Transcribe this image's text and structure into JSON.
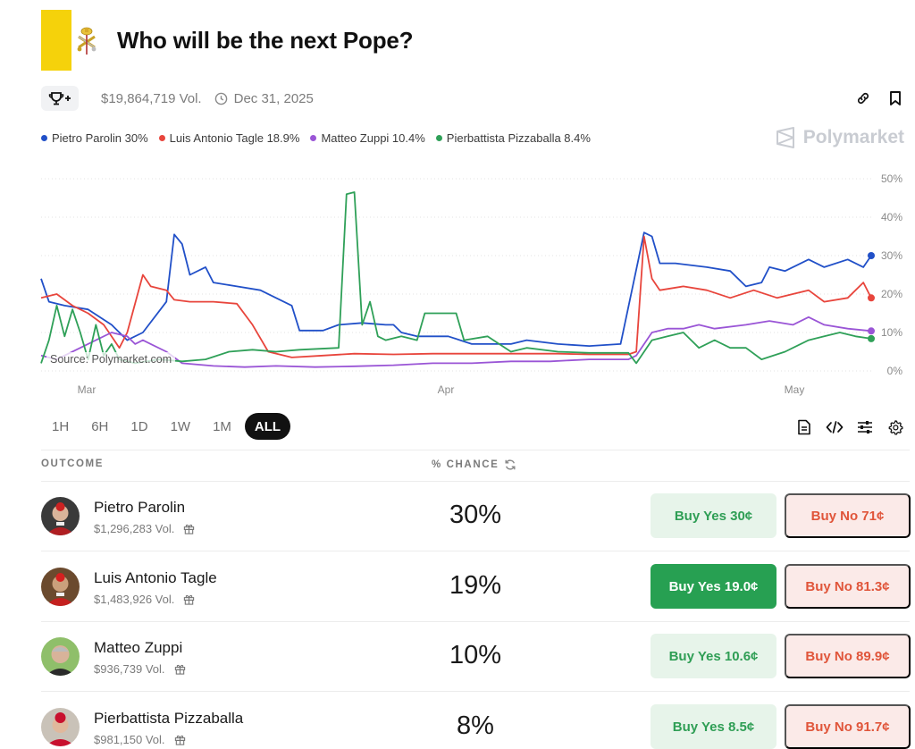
{
  "market": {
    "title": "Who will be the next Pope?",
    "volume": "$19,864,719 Vol.",
    "end_date": "Dec 31, 2025",
    "accent": "#f5d20b",
    "image_icon": "papal-emblem-icon",
    "trophy_icon": "trophy-plus-icon"
  },
  "brand": {
    "name": "Polymarket",
    "icon": "polymarket-logo-icon"
  },
  "top_actions": {
    "link_icon": "link-icon",
    "bookmark_icon": "bookmark-icon"
  },
  "legend": [
    {
      "label": "Pietro Parolin 30%",
      "color": "#2150c8"
    },
    {
      "label": "Luis Antonio Tagle 18.9%",
      "color": "#e8453c"
    },
    {
      "label": "Matteo Zuppi 10.4%",
      "color": "#9a55d6"
    },
    {
      "label": "Pierbattista Pizzaballa 8.4%",
      "color": "#2fa058"
    }
  ],
  "chart_data": {
    "type": "line",
    "source": "Source: Polymarket.com",
    "x_ticks": [
      "Mar",
      "Apr",
      "May"
    ],
    "y_ticks": [
      "50%",
      "40%",
      "30%",
      "20%",
      "10%",
      "0%"
    ],
    "ylim": [
      0,
      50
    ],
    "grid": true,
    "x_range_days": [
      0,
      75
    ],
    "series": [
      {
        "name": "Pietro Parolin",
        "color": "#2150c8",
        "points": [
          [
            0,
            24
          ],
          [
            1,
            18
          ],
          [
            3,
            17
          ],
          [
            6,
            16
          ],
          [
            9,
            12
          ],
          [
            11,
            8
          ],
          [
            13,
            10
          ],
          [
            16,
            18
          ],
          [
            17,
            35.5
          ],
          [
            18,
            33
          ],
          [
            19,
            25
          ],
          [
            21,
            27
          ],
          [
            22,
            23
          ],
          [
            25,
            22
          ],
          [
            28,
            21
          ],
          [
            30,
            19
          ],
          [
            32,
            17
          ],
          [
            33,
            10.5
          ],
          [
            36,
            10.5
          ],
          [
            38,
            12
          ],
          [
            41,
            12.5
          ],
          [
            44,
            12
          ],
          [
            45,
            12
          ],
          [
            46,
            10
          ],
          [
            48,
            9
          ],
          [
            52,
            9
          ],
          [
            55,
            7
          ],
          [
            60,
            7
          ],
          [
            62,
            8
          ],
          [
            66,
            7
          ],
          [
            70,
            6.5
          ],
          [
            74,
            7
          ],
          [
            77,
            36
          ],
          [
            78,
            35
          ],
          [
            79,
            28
          ],
          [
            81,
            28
          ],
          [
            85,
            27
          ],
          [
            88,
            26
          ],
          [
            90,
            22
          ],
          [
            92,
            23
          ],
          [
            93,
            27
          ],
          [
            95,
            26
          ],
          [
            98,
            29
          ],
          [
            100,
            27
          ],
          [
            103,
            29
          ],
          [
            105,
            27
          ],
          [
            106,
            30
          ]
        ]
      },
      {
        "name": "Luis Antonio Tagle",
        "color": "#e8453c",
        "points": [
          [
            0,
            19
          ],
          [
            2,
            20
          ],
          [
            4,
            17
          ],
          [
            6,
            15
          ],
          [
            8,
            12
          ],
          [
            10,
            6
          ],
          [
            11,
            10
          ],
          [
            13,
            25
          ],
          [
            14,
            22
          ],
          [
            16,
            21
          ],
          [
            17,
            18.5
          ],
          [
            19,
            18
          ],
          [
            22,
            18
          ],
          [
            25,
            17.5
          ],
          [
            27,
            12
          ],
          [
            29,
            5
          ],
          [
            32,
            3.5
          ],
          [
            36,
            4
          ],
          [
            40,
            4.5
          ],
          [
            45,
            4.3
          ],
          [
            50,
            4.5
          ],
          [
            55,
            4.5
          ],
          [
            60,
            4.5
          ],
          [
            66,
            4.5
          ],
          [
            70,
            4.3
          ],
          [
            75,
            4.3
          ],
          [
            76,
            5
          ],
          [
            77,
            35
          ],
          [
            78,
            24
          ],
          [
            79,
            21
          ],
          [
            82,
            22
          ],
          [
            85,
            21
          ],
          [
            88,
            19
          ],
          [
            91,
            21
          ],
          [
            94,
            19
          ],
          [
            98,
            21
          ],
          [
            100,
            18
          ],
          [
            103,
            19
          ],
          [
            105,
            23
          ],
          [
            106,
            19
          ]
        ]
      },
      {
        "name": "Matteo Zuppi",
        "color": "#9a55d6",
        "points": [
          [
            0,
            4
          ],
          [
            2,
            3
          ],
          [
            5,
            6
          ],
          [
            7,
            8
          ],
          [
            9,
            10
          ],
          [
            11,
            9
          ],
          [
            12,
            7
          ],
          [
            13,
            8
          ],
          [
            14,
            7
          ],
          [
            16,
            5
          ],
          [
            18,
            2
          ],
          [
            22,
            1.3
          ],
          [
            26,
            1
          ],
          [
            30,
            1.3
          ],
          [
            35,
            1
          ],
          [
            40,
            1.2
          ],
          [
            45,
            1.5
          ],
          [
            50,
            2
          ],
          [
            55,
            2
          ],
          [
            60,
            2.5
          ],
          [
            65,
            2.5
          ],
          [
            70,
            3
          ],
          [
            75,
            3
          ],
          [
            76,
            4
          ],
          [
            78,
            10
          ],
          [
            80,
            11
          ],
          [
            82,
            11
          ],
          [
            84,
            12
          ],
          [
            86,
            11
          ],
          [
            90,
            12
          ],
          [
            93,
            13
          ],
          [
            96,
            12
          ],
          [
            98,
            14
          ],
          [
            100,
            12
          ],
          [
            103,
            11
          ],
          [
            106,
            10.4
          ]
        ]
      },
      {
        "name": "Pierbattista Pizzaballa",
        "color": "#2fa058",
        "points": [
          [
            0,
            2
          ],
          [
            1,
            8
          ],
          [
            2,
            17
          ],
          [
            3,
            9
          ],
          [
            4,
            16
          ],
          [
            5,
            10
          ],
          [
            6,
            3
          ],
          [
            7,
            12
          ],
          [
            8,
            4
          ],
          [
            9,
            7
          ],
          [
            10,
            3
          ],
          [
            12,
            2
          ],
          [
            15,
            3
          ],
          [
            18,
            2.5
          ],
          [
            21,
            3
          ],
          [
            24,
            5
          ],
          [
            27,
            5.5
          ],
          [
            30,
            5
          ],
          [
            33,
            5.5
          ],
          [
            38,
            6
          ],
          [
            39,
            46
          ],
          [
            40,
            46.5
          ],
          [
            41,
            12
          ],
          [
            42,
            18
          ],
          [
            43,
            9
          ],
          [
            44,
            8
          ],
          [
            46,
            9
          ],
          [
            48,
            8
          ],
          [
            49,
            15
          ],
          [
            53,
            15
          ],
          [
            54,
            8
          ],
          [
            57,
            9
          ],
          [
            60,
            5
          ],
          [
            62,
            6
          ],
          [
            66,
            5
          ],
          [
            70,
            4.7
          ],
          [
            75,
            4.7
          ],
          [
            76,
            2
          ],
          [
            78,
            8
          ],
          [
            80,
            9
          ],
          [
            82,
            10
          ],
          [
            84,
            6
          ],
          [
            86,
            8
          ],
          [
            88,
            6
          ],
          [
            90,
            6
          ],
          [
            92,
            3
          ],
          [
            95,
            5
          ],
          [
            98,
            8
          ],
          [
            100,
            9
          ],
          [
            102,
            10
          ],
          [
            104,
            9
          ],
          [
            106,
            8.4
          ]
        ]
      }
    ]
  },
  "ranges": [
    "1H",
    "6H",
    "1D",
    "1W",
    "1M",
    "ALL"
  ],
  "active_range": "ALL",
  "tools": [
    "document-icon",
    "embed-code-icon",
    "sliders-icon",
    "settings-gear-icon"
  ],
  "table": {
    "col_outcome": "OUTCOME",
    "col_chance": "% CHANCE",
    "rows": [
      {
        "name": "Pietro Parolin",
        "volume": "$1,296,283 Vol.",
        "chance": "30%",
        "buy_yes": "Buy Yes 30¢",
        "buy_no": "Buy No 71¢",
        "yes_active": false
      },
      {
        "name": "Luis Antonio Tagle",
        "volume": "$1,483,926 Vol.",
        "chance": "19%",
        "buy_yes": "Buy Yes 19.0¢",
        "buy_no": "Buy No 81.3¢",
        "yes_active": true
      },
      {
        "name": "Matteo Zuppi",
        "volume": "$936,739 Vol.",
        "chance": "10%",
        "buy_yes": "Buy Yes 10.6¢",
        "buy_no": "Buy No 89.9¢",
        "yes_active": false
      },
      {
        "name": "Pierbattista Pizzaballa",
        "volume": "$981,150 Vol.",
        "chance": "8%",
        "buy_yes": "Buy Yes 8.5¢",
        "buy_no": "Buy No 91.7¢",
        "yes_active": false
      }
    ]
  }
}
